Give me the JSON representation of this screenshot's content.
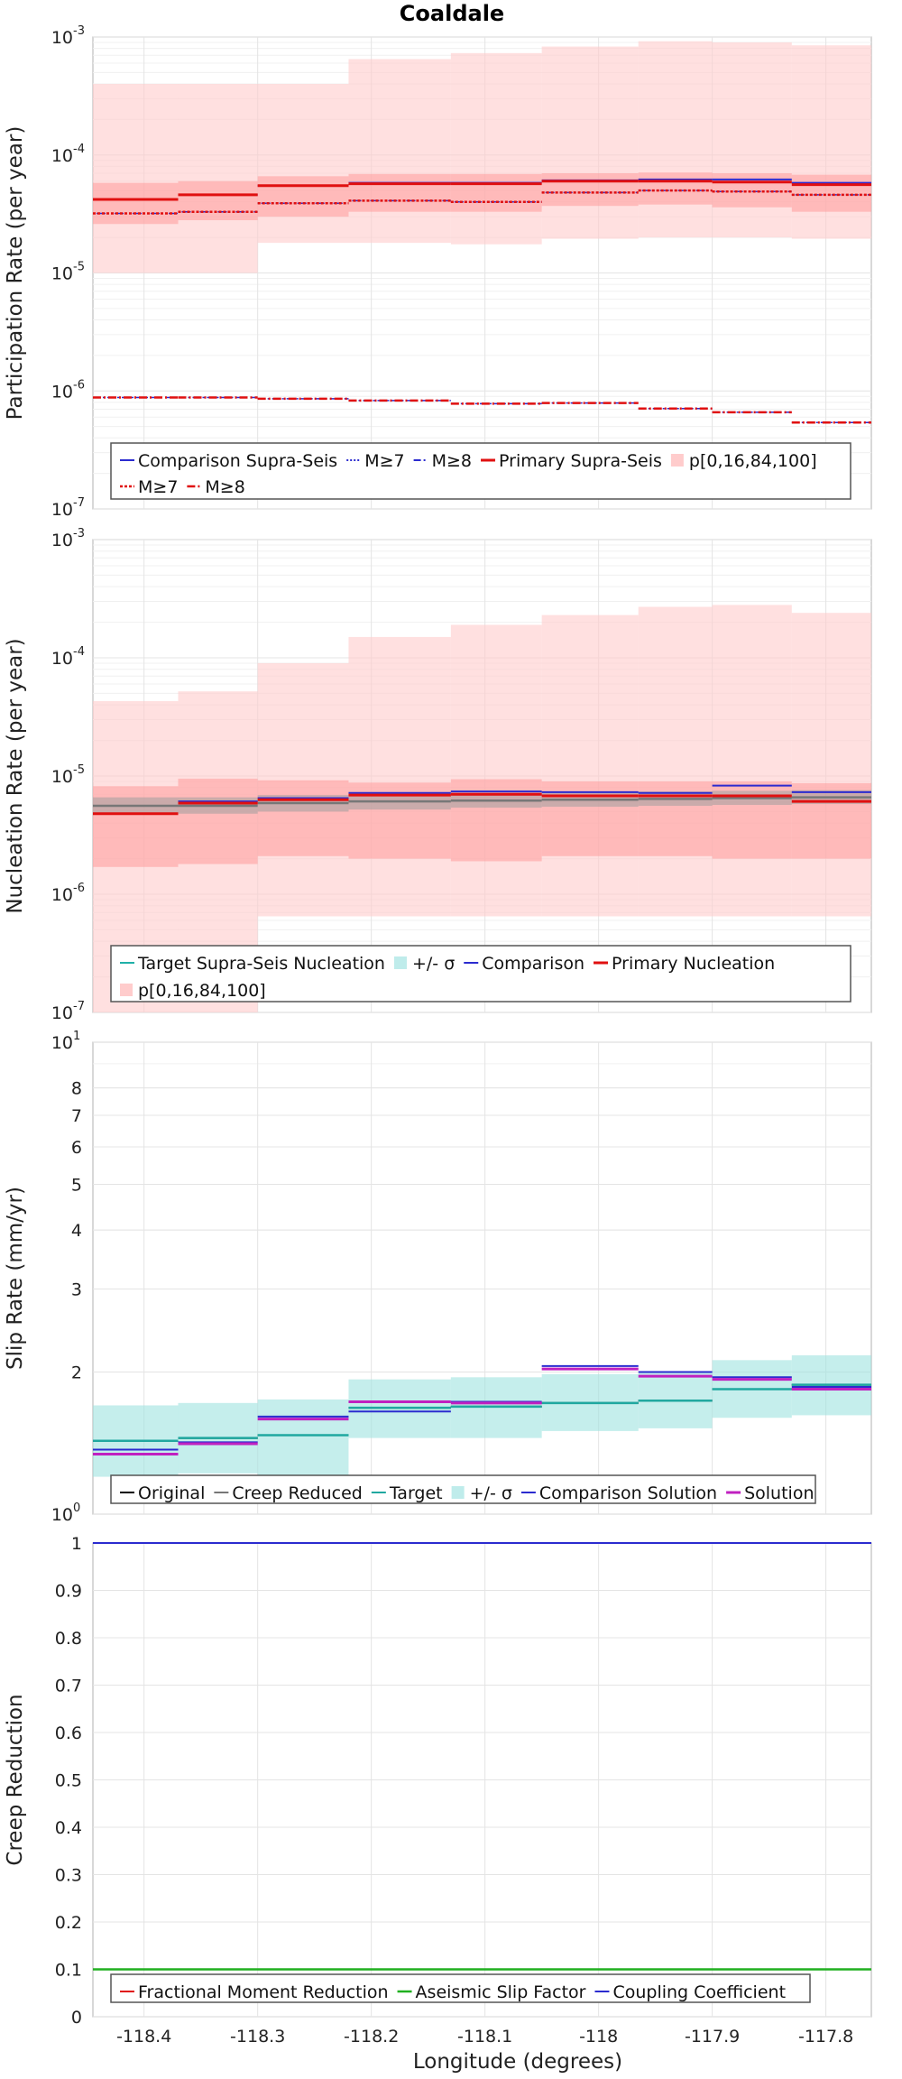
{
  "title": "Coaldale",
  "xlabel": "Longitude (degrees)",
  "x_ticks": [
    -118.4,
    -118.3,
    -118.2,
    -118.1,
    -118,
    -117.9,
    -117.8
  ],
  "x_tick_labels": [
    "-118.4",
    "-118.3",
    "-118.2",
    "-118.1",
    "-118",
    "-117.9",
    "-117.8"
  ],
  "xlim": [
    -118.445,
    -117.76
  ],
  "chart_data": [
    {
      "type": "line",
      "ylabel": "Participation Rate (per year)",
      "yscale": "log",
      "ylim": [
        1e-07,
        0.001
      ],
      "y_ticks": [
        {
          "base": "10",
          "exp": "-7",
          "value": 1e-07
        },
        {
          "base": "10",
          "exp": "-6",
          "value": 1e-06
        },
        {
          "base": "10",
          "exp": "-5",
          "value": 1e-05
        },
        {
          "base": "10",
          "exp": "-4",
          "value": 0.0001
        },
        {
          "base": "10",
          "exp": "-3",
          "value": 0.001
        }
      ],
      "x_edges": [
        -118.445,
        -118.37,
        -118.3,
        -118.22,
        -118.13,
        -118.05,
        -117.965,
        -117.9,
        -117.83,
        -117.76
      ],
      "bands": [
        {
          "name": "p[0,16,84,100]",
          "color": "#ffcccc",
          "opacity": 0.6,
          "lower": [
            1e-05,
            1e-05,
            1.8e-05,
            1.8e-05,
            1.75e-05,
            1.95e-05,
            2e-05,
            2e-05,
            1.95e-05
          ],
          "upper": [
            0.0004,
            0.0004,
            0.0004,
            0.00065,
            0.00073,
            0.00083,
            0.00092,
            0.0009,
            0.00085
          ]
        },
        {
          "name": "p[0,16,84,100]",
          "color": "#ff9a9a",
          "opacity": 0.55,
          "lower": [
            2.6e-05,
            2.8e-05,
            3e-05,
            3.3e-05,
            3.3e-05,
            3.7e-05,
            3.8e-05,
            3.6e-05,
            3.3e-05
          ],
          "upper": [
            5.8e-05,
            6e-05,
            6.6e-05,
            6.9e-05,
            6.9e-05,
            7e-05,
            7.1e-05,
            7e-05,
            6.8e-05
          ]
        }
      ],
      "series": [
        {
          "name": "Comparison Supra-Seis",
          "color": "#2b2bcf",
          "width": 2,
          "dash": "",
          "values": [
            4.2e-05,
            4.6e-05,
            5.5e-05,
            5.8e-05,
            5.8e-05,
            6.1e-05,
            6.2e-05,
            6.2e-05,
            5.8e-05
          ]
        },
        {
          "name": "M≥7",
          "color": "#2b2bcf",
          "width": 1.5,
          "dash": "2,2",
          "values": [
            3.2e-05,
            3.3e-05,
            3.9e-05,
            4.1e-05,
            4e-05,
            4.8e-05,
            5e-05,
            4.9e-05,
            4.6e-05
          ]
        },
        {
          "name": "M≥8",
          "color": "#2b2bcf",
          "width": 1.5,
          "dash": "8,3,2,3",
          "values": [
            8.8e-07,
            8.8e-07,
            8.6e-07,
            8.3e-07,
            7.8e-07,
            7.9e-07,
            7.1e-07,
            6.6e-07,
            5.4e-07
          ]
        },
        {
          "name": "Primary Supra-Seis",
          "color": "#e01010",
          "width": 3,
          "dash": "",
          "values": [
            4.2e-05,
            4.6e-05,
            5.5e-05,
            5.7e-05,
            5.7e-05,
            6e-05,
            6e-05,
            5.9e-05,
            5.6e-05
          ]
        },
        {
          "name": "M≥7",
          "color": "#e01010",
          "width": 2.5,
          "dash": "3,2",
          "values": [
            3.2e-05,
            3.3e-05,
            3.9e-05,
            4.1e-05,
            4e-05,
            4.8e-05,
            5e-05,
            4.9e-05,
            4.6e-05
          ]
        },
        {
          "name": "M≥8",
          "color": "#e01010",
          "width": 2.5,
          "dash": "9,3,2,3",
          "values": [
            8.8e-07,
            8.8e-07,
            8.6e-07,
            8.3e-07,
            7.8e-07,
            7.9e-07,
            7.1e-07,
            6.6e-07,
            5.4e-07
          ]
        }
      ],
      "legend": [
        {
          "label": "Comparison Supra-Seis",
          "color": "#2b2bcf",
          "kind": "line",
          "dash": "",
          "width": 2
        },
        {
          "label": "M≥7",
          "color": "#2b2bcf",
          "kind": "line",
          "dash": "2,2",
          "width": 1.5
        },
        {
          "label": "M≥8",
          "color": "#2b2bcf",
          "kind": "line",
          "dash": "8,3,2,3",
          "width": 1.5
        },
        {
          "label": "Primary Supra-Seis",
          "color": "#e01010",
          "kind": "line",
          "dash": "",
          "width": 3
        },
        {
          "label": "p[0,16,84,100]",
          "color": "#ffcccc",
          "kind": "patch",
          "dash": "",
          "width": 0
        },
        {
          "label": "M≥7",
          "color": "#e01010",
          "kind": "line",
          "dash": "3,2",
          "width": 2.5
        },
        {
          "label": "M≥8",
          "color": "#e01010",
          "kind": "line",
          "dash": "9,3,2,3",
          "width": 2.5
        }
      ]
    },
    {
      "type": "line",
      "ylabel": "Nucleation Rate (per year)",
      "yscale": "log",
      "ylim": [
        1e-07,
        0.001
      ],
      "y_ticks": [
        {
          "base": "10",
          "exp": "-7",
          "value": 1e-07
        },
        {
          "base": "10",
          "exp": "-6",
          "value": 1e-06
        },
        {
          "base": "10",
          "exp": "-5",
          "value": 1e-05
        },
        {
          "base": "10",
          "exp": "-4",
          "value": 0.0001
        },
        {
          "base": "10",
          "exp": "-3",
          "value": 0.001
        }
      ],
      "x_edges": [
        -118.445,
        -118.37,
        -118.3,
        -118.22,
        -118.13,
        -118.05,
        -117.965,
        -117.9,
        -117.83,
        -117.76
      ],
      "bands": [
        {
          "name": "p[0,16,84,100]",
          "color": "#ffcccc",
          "opacity": 0.6,
          "lower": [
            1e-07,
            1e-07,
            6.5e-07,
            6.5e-07,
            6.5e-07,
            6.5e-07,
            6.5e-07,
            6.5e-07,
            6.5e-07
          ],
          "upper": [
            4.3e-05,
            5.2e-05,
            9e-05,
            0.00015,
            0.00019,
            0.00023,
            0.00027,
            0.00028,
            0.00024
          ]
        },
        {
          "name": "p[0,16,84,100]",
          "color": "#ff9a9a",
          "opacity": 0.55,
          "lower": [
            1.7e-06,
            1.8e-06,
            2.1e-06,
            2e-06,
            1.9e-06,
            2.1e-06,
            2.1e-06,
            2e-06,
            2e-06
          ],
          "upper": [
            8.2e-06,
            9.5e-06,
            9.2e-06,
            8.8e-06,
            9.4e-06,
            9e-06,
            9e-06,
            9e-06,
            8.7e-06
          ]
        },
        {
          "name": "+/- σ",
          "color": "#9e9e9e",
          "opacity": 0.55,
          "lower": [
            4.8e-06,
            4.8e-06,
            5e-06,
            5.2e-06,
            5.4e-06,
            5.5e-06,
            5.6e-06,
            5.7e-06,
            5.8e-06
          ],
          "upper": [
            6.6e-06,
            6.6e-06,
            6.9e-06,
            7.1e-06,
            7.2e-06,
            7.3e-06,
            7.4e-06,
            7.5e-06,
            7.6e-06
          ]
        }
      ],
      "series": [
        {
          "name": "Target Supra-Seis Nucleation",
          "color": "#777777",
          "width": 2.5,
          "dash": "",
          "values": [
            5.6e-06,
            5.6e-06,
            5.9e-06,
            6.1e-06,
            6.2e-06,
            6.3e-06,
            6.4e-06,
            6.5e-06,
            6.6e-06
          ]
        },
        {
          "name": "Comparison",
          "color": "#2b2bcf",
          "width": 2,
          "dash": "",
          "values": [
            4.8e-06,
            6.1e-06,
            6.5e-06,
            7.2e-06,
            7.4e-06,
            7.3e-06,
            7.2e-06,
            8.3e-06,
            7.3e-06
          ]
        },
        {
          "name": "Primary Nucleation",
          "color": "#e01010",
          "width": 3,
          "dash": "",
          "values": [
            4.8e-06,
            5.9e-06,
            6.3e-06,
            6.9e-06,
            7e-06,
            6.8e-06,
            6.8e-06,
            6.8e-06,
            6.1e-06
          ]
        }
      ],
      "legend": [
        {
          "label": "Target Supra-Seis Nucleation",
          "color": "#20b0a8",
          "kind": "line",
          "dash": "",
          "width": 2
        },
        {
          "label": "+/- σ",
          "color": "#bfeceb",
          "kind": "patch",
          "dash": "",
          "width": 0
        },
        {
          "label": "Comparison",
          "color": "#2b2bcf",
          "kind": "line",
          "dash": "",
          "width": 2
        },
        {
          "label": "Primary Nucleation",
          "color": "#e01010",
          "kind": "line",
          "dash": "",
          "width": 3
        },
        {
          "label": "p[0,16,84,100]",
          "color": "#ffcccc",
          "kind": "patch",
          "dash": "",
          "width": 0
        }
      ]
    },
    {
      "type": "line",
      "ylabel": "Slip Rate (mm/yr)",
      "yscale": "log",
      "ylim": [
        1,
        10
      ],
      "y_ticks": [
        {
          "base": "10",
          "exp": "0",
          "value": 1
        },
        {
          "base": "2",
          "exp": "",
          "value": 2
        },
        {
          "base": "3",
          "exp": "",
          "value": 3
        },
        {
          "base": "4",
          "exp": "",
          "value": 4
        },
        {
          "base": "5",
          "exp": "",
          "value": 5
        },
        {
          "base": "6",
          "exp": "",
          "value": 6
        },
        {
          "base": "7",
          "exp": "",
          "value": 7
        },
        {
          "base": "8",
          "exp": "",
          "value": 8
        },
        {
          "base": "10",
          "exp": "1",
          "value": 10
        }
      ],
      "x_edges": [
        -118.445,
        -118.37,
        -118.3,
        -118.22,
        -118.13,
        -118.05,
        -117.965,
        -117.9,
        -117.83,
        -117.76
      ],
      "bands": [
        {
          "name": "+/- σ",
          "color": "#9fe3e0",
          "opacity": 0.6,
          "lower": [
            1.2,
            1.22,
            1.2,
            1.45,
            1.45,
            1.5,
            1.52,
            1.6,
            1.62
          ],
          "upper": [
            1.7,
            1.72,
            1.75,
            1.93,
            1.95,
            1.98,
            2.0,
            2.12,
            2.17
          ]
        }
      ],
      "series": [
        {
          "name": "Original",
          "color": "#000000",
          "width": 2,
          "dash": "",
          "values": [
            1.43,
            1.45,
            1.47,
            1.68,
            1.69,
            1.72,
            1.74,
            1.84,
            1.88
          ]
        },
        {
          "name": "Creep Reduced",
          "color": "#777777",
          "width": 2,
          "dash": "",
          "values": [
            1.43,
            1.45,
            1.47,
            1.68,
            1.69,
            1.72,
            1.74,
            1.84,
            1.88
          ]
        },
        {
          "name": "Target",
          "color": "#20a8a0",
          "width": 2.5,
          "dash": "",
          "values": [
            1.43,
            1.45,
            1.47,
            1.68,
            1.69,
            1.72,
            1.74,
            1.84,
            1.88
          ]
        },
        {
          "name": "Comparison Solution",
          "color": "#2b2bcf",
          "width": 2,
          "dash": "",
          "values": [
            1.37,
            1.42,
            1.61,
            1.65,
            1.73,
            2.06,
            2.0,
            1.95,
            1.86
          ]
        },
        {
          "name": "Solution",
          "color": "#c020c0",
          "width": 3,
          "dash": "",
          "values": [
            1.34,
            1.41,
            1.59,
            1.73,
            1.72,
            2.03,
            1.96,
            1.93,
            1.84
          ]
        }
      ],
      "legend": [
        {
          "label": "Original",
          "color": "#000000",
          "kind": "line",
          "dash": "",
          "width": 2
        },
        {
          "label": "Creep Reduced",
          "color": "#777777",
          "kind": "line",
          "dash": "",
          "width": 2
        },
        {
          "label": "Target",
          "color": "#20a8a0",
          "kind": "line",
          "dash": "",
          "width": 2
        },
        {
          "label": "+/- σ",
          "color": "#bfeceb",
          "kind": "patch",
          "dash": "",
          "width": 0
        },
        {
          "label": "Comparison Solution",
          "color": "#2b2bcf",
          "kind": "line",
          "dash": "",
          "width": 2
        },
        {
          "label": "Solution",
          "color": "#c020c0",
          "kind": "line",
          "dash": "",
          "width": 3
        }
      ]
    },
    {
      "type": "line",
      "ylabel": "Creep Reduction",
      "yscale": "linear",
      "ylim": [
        0,
        1
      ],
      "y_ticks": [
        {
          "base": "0",
          "exp": "",
          "value": 0
        },
        {
          "base": "0.1",
          "exp": "",
          "value": 0.1
        },
        {
          "base": "0.2",
          "exp": "",
          "value": 0.2
        },
        {
          "base": "0.3",
          "exp": "",
          "value": 0.3
        },
        {
          "base": "0.4",
          "exp": "",
          "value": 0.4
        },
        {
          "base": "0.5",
          "exp": "",
          "value": 0.5
        },
        {
          "base": "0.6",
          "exp": "",
          "value": 0.6
        },
        {
          "base": "0.7",
          "exp": "",
          "value": 0.7
        },
        {
          "base": "0.8",
          "exp": "",
          "value": 0.8
        },
        {
          "base": "0.9",
          "exp": "",
          "value": 0.9
        },
        {
          "base": "1",
          "exp": "",
          "value": 1
        }
      ],
      "x_edges": [
        -118.445,
        -117.76
      ],
      "bands": [],
      "series": [
        {
          "name": "Fractional Moment Reduction",
          "color": "#e01010",
          "width": 2,
          "dash": "",
          "values": [
            0.1
          ]
        },
        {
          "name": "Aseismic Slip Factor",
          "color": "#20b020",
          "width": 2.5,
          "dash": "",
          "values": [
            0.1
          ]
        },
        {
          "name": "Coupling Coefficient",
          "color": "#2b2bcf",
          "width": 2,
          "dash": "",
          "values": [
            1
          ]
        }
      ],
      "legend": [
        {
          "label": "Fractional Moment Reduction",
          "color": "#e01010",
          "kind": "line",
          "dash": "",
          "width": 2
        },
        {
          "label": "Aseismic Slip Factor",
          "color": "#20b020",
          "kind": "line",
          "dash": "",
          "width": 2.5
        },
        {
          "label": "Coupling Coefficient",
          "color": "#2b2bcf",
          "kind": "line",
          "dash": "",
          "width": 2
        }
      ]
    }
  ]
}
